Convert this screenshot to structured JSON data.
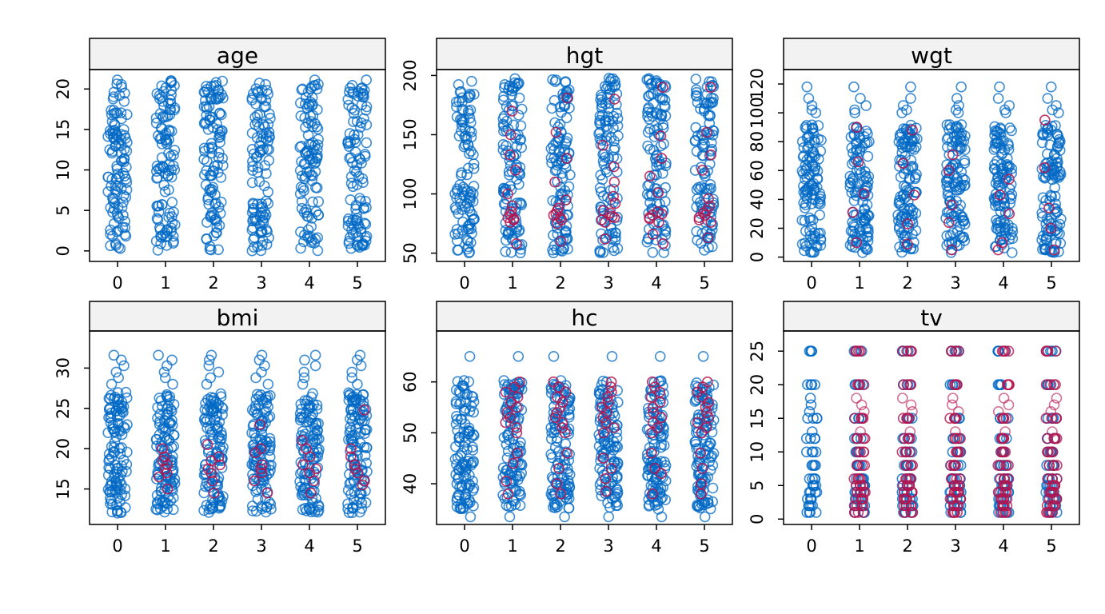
{
  "colors": {
    "observed": "#0068C4",
    "imputed": "#B5144E",
    "strip_fill": "#F2F2F2",
    "frame": "#000000"
  },
  "chart_data": [
    {
      "type": "scatter",
      "title": "age",
      "categories": [
        "0",
        "1",
        "2",
        "3",
        "4",
        "5"
      ],
      "x": [
        0,
        1,
        2,
        3,
        4,
        5
      ],
      "xlabel": "",
      "ylabel": "",
      "ylim": [
        -1.3,
        22.4
      ],
      "yticks": [
        0,
        5,
        10,
        15,
        20
      ],
      "series": [
        {
          "role": "observed",
          "ranges": [
            [
              0,
              21.2
            ]
          ],
          "gaps": [
            [
              6.2,
              7.0
            ],
            [
              8.2,
              8.8
            ]
          ]
        }
      ]
    },
    {
      "type": "scatter",
      "title": "hgt",
      "categories": [
        "0",
        "1",
        "2",
        "3",
        "4",
        "5"
      ],
      "x": [
        0,
        1,
        2,
        3,
        4,
        5
      ],
      "xlabel": "",
      "ylabel": "",
      "ylim": [
        43,
        205
      ],
      "yticks": [
        50,
        100,
        150,
        200
      ],
      "series": [
        {
          "role": "observed",
          "ranges": [
            [
              50,
              198
            ]
          ],
          "gaps": [
            [
              108,
              116
            ]
          ]
        },
        {
          "role": "imputed",
          "groups": [
            [],
            [
              78,
              80,
              82,
              76,
              85,
              79,
              100,
              58,
              133,
              150,
              170,
              120,
              90
            ],
            [
              80,
              83,
              78,
              82,
              86,
              75,
              95,
              60,
              152,
              181,
              110,
              130,
              88
            ],
            [
              78,
              81,
              84,
              76,
              86,
              80,
              98,
              62,
              141,
              180,
              123,
              110,
              92
            ],
            [
              80,
              82,
              76,
              85,
              83,
              79,
              101,
              58,
              149,
              190,
              130,
              115,
              66
            ],
            [
              82,
              78,
              86,
              80,
              84,
              76,
              96,
              63,
              133,
              190,
              152,
              120,
              90
            ]
          ]
        }
      ]
    },
    {
      "type": "scatter",
      "title": "wgt",
      "categories": [
        "0",
        "1",
        "2",
        "3",
        "4",
        "5"
      ],
      "x": [
        0,
        1,
        2,
        3,
        4,
        5
      ],
      "xlabel": "",
      "ylabel": "",
      "ylim": [
        -3,
        130
      ],
      "yticks": [
        0,
        20,
        40,
        60,
        80,
        100,
        120
      ],
      "series": [
        {
          "role": "observed",
          "ranges": [
            [
              3,
              92
            ]
          ],
          "outliers": [
            100,
            102,
            105,
            110,
            118
          ]
        },
        {
          "role": "imputed",
          "groups": [
            [],
            [
              66,
              44,
              31,
              10,
              90
            ],
            [
              65,
              43,
              23,
              9,
              88
            ],
            [
              71,
              36,
              24,
              5,
              60
            ],
            [
              54,
              43,
              10,
              5,
              30
            ],
            [
              95,
              34,
              5,
              62,
              20
            ]
          ]
        }
      ]
    },
    {
      "type": "scatter",
      "title": "bmi",
      "categories": [
        "0",
        "1",
        "2",
        "3",
        "4",
        "5"
      ],
      "x": [
        0,
        1,
        2,
        3,
        4,
        5
      ],
      "xlabel": "",
      "ylabel": "",
      "ylim": [
        10.6,
        34.6
      ],
      "yticks": [
        15,
        20,
        25,
        30
      ],
      "series": [
        {
          "role": "observed",
          "ranges": [
            [
              12,
              27
            ]
          ],
          "outliers": [
            28,
            28.8,
            29.5,
            30.3,
            31,
            31.6
          ]
        },
        {
          "role": "imputed",
          "groups": [
            [],
            [
              18,
              17.5,
              18.5,
              17,
              19,
              15,
              20,
              16.5
            ],
            [
              17.5,
              18,
              16,
              19,
              14.5,
              20.5,
              17,
              18.5
            ],
            [
              18,
              17,
              19.5,
              14.5,
              23,
              16,
              20,
              17.5
            ],
            [
              18,
              17,
              19,
              14.5,
              21,
              16,
              20,
              17.5
            ],
            [
              18,
              17,
              19,
              16,
              24.8,
              20,
              17.5,
              15.5
            ]
          ]
        }
      ]
    },
    {
      "type": "scatter",
      "title": "hc",
      "categories": [
        "0",
        "1",
        "2",
        "3",
        "4",
        "5"
      ],
      "x": [
        0,
        1,
        2,
        3,
        4,
        5
      ],
      "xlabel": "",
      "ylabel": "",
      "ylim": [
        32,
        70
      ],
      "yticks": [
        40,
        50,
        60
      ],
      "series": [
        {
          "role": "observed",
          "ranges": [
            [
              35,
              60.5
            ]
          ],
          "outliers": [
            33.5,
            65
          ]
        },
        {
          "role": "imputed",
          "groups": [
            [],
            [
              55,
              54,
              56,
              53,
              57,
              52,
              58,
              51,
              59,
              50,
              46,
              44,
              40.5,
              38,
              60
            ],
            [
              55,
              54,
              56,
              53,
              57,
              52,
              58,
              51,
              59,
              50,
              46,
              43,
              40,
              38,
              60
            ],
            [
              55,
              54,
              56,
              53,
              57,
              52,
              58,
              51,
              59,
              50,
              45,
              43,
              41,
              38.5,
              60
            ],
            [
              55,
              54,
              56,
              53,
              57,
              52,
              58,
              51,
              59,
              50,
              46,
              43,
              42,
              38,
              60
            ],
            [
              55,
              54,
              56,
              53,
              57,
              52,
              58,
              51,
              59,
              50,
              46,
              43,
              40,
              38,
              60
            ]
          ]
        }
      ]
    },
    {
      "type": "scatter",
      "title": "tv",
      "categories": [
        "0",
        "1",
        "2",
        "3",
        "4",
        "5"
      ],
      "x": [
        0,
        1,
        2,
        3,
        4,
        5
      ],
      "xlabel": "",
      "ylabel": "",
      "ylim": [
        -0.8,
        28
      ],
      "yticks": [
        0,
        5,
        10,
        15,
        20,
        25
      ],
      "series": [
        {
          "role": "observed",
          "levels": [
            1,
            2,
            3,
            4,
            5,
            6,
            8,
            10,
            12,
            15,
            20,
            25
          ],
          "extra": [
            0,
            [
              13,
              16,
              17,
              18
            ]
          ]
        },
        {
          "role": "imputed",
          "levels": [
            1,
            2,
            3,
            4,
            5,
            6,
            8,
            10,
            12,
            15,
            20,
            25
          ],
          "columns": [
            1,
            2,
            3,
            4,
            5
          ],
          "extra": [
            13,
            16,
            17,
            18
          ]
        }
      ]
    }
  ]
}
